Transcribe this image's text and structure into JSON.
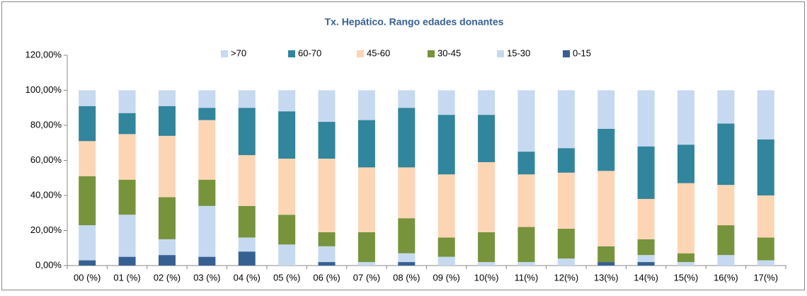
{
  "chart_data": {
    "type": "stacked_bar",
    "title": "Tx. Hepático. Rango edades donantes",
    "categories": [
      "00 (%)",
      "01 (%)",
      "02 (%)",
      "03 (%)",
      "04 (%)",
      "05 (%)",
      "06 (%)",
      "07 (%)",
      "08 (%)",
      "09 (%)",
      "10(%)",
      "11(%)",
      "12(%)",
      "13(%)",
      "14(%)",
      "15(%)",
      "16(%)",
      "17(%)"
    ],
    "series": [
      {
        "name": "0-15",
        "color": "#376092",
        "values": [
          3,
          5,
          6,
          5,
          8,
          0,
          2,
          0,
          2,
          0,
          0,
          0,
          0,
          2,
          2,
          0,
          0,
          0
        ]
      },
      {
        "name": "15-30",
        "color": "#c6d9f1",
        "values": [
          20,
          24,
          9,
          29,
          8,
          12,
          9,
          2,
          5,
          5,
          2,
          2,
          4,
          0,
          4,
          2,
          6,
          3
        ]
      },
      {
        "name": "30-45",
        "color": "#77933c",
        "values": [
          28,
          20,
          24,
          15,
          18,
          17,
          8,
          17,
          20,
          11,
          17,
          20,
          17,
          9,
          9,
          5,
          17,
          13
        ]
      },
      {
        "name": "45-60",
        "color": "#fcd5b5",
        "values": [
          20,
          26,
          35,
          34,
          29,
          32,
          42,
          37,
          29,
          36,
          40,
          30,
          32,
          43,
          23,
          40,
          23,
          24
        ]
      },
      {
        "name": "60-70",
        "color": "#31859c",
        "values": [
          20,
          12,
          17,
          7,
          27,
          27,
          21,
          27,
          34,
          34,
          27,
          13,
          14,
          24,
          30,
          22,
          35,
          32
        ]
      },
      {
        "name": ">70",
        "color": "#c6d9f1",
        "values": [
          9,
          13,
          9,
          10,
          10,
          12,
          18,
          17,
          10,
          14,
          14,
          35,
          33,
          22,
          32,
          31,
          19,
          28
        ]
      }
    ],
    "ylim": [
      0,
      120
    ],
    "yticks": [
      {
        "value": 0,
        "label": "0,00%"
      },
      {
        "value": 20,
        "label": "20,00%"
      },
      {
        "value": 40,
        "label": "40,00%"
      },
      {
        "value": 60,
        "label": "60,00%"
      },
      {
        "value": 80,
        "label": "80,00%"
      },
      {
        "value": 100,
        "label": "100,00%"
      },
      {
        "value": 120,
        "label": "120,00%"
      }
    ],
    "legend": "top",
    "grid": false
  }
}
